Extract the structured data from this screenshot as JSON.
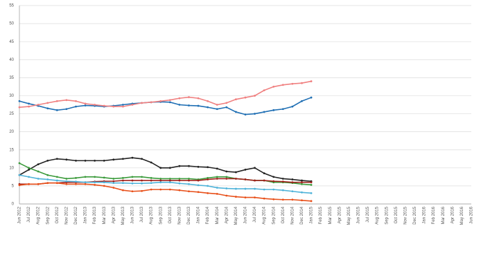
{
  "chart_data": {
    "type": "line",
    "categories": [
      "Jun 2012",
      "Jul 2012",
      "Aug 2012",
      "Sep 2012",
      "Oct 2012",
      "Nov 2012",
      "Dec 2012",
      "Jan 2013",
      "Feb 2013",
      "Mar 2013",
      "Apr 2013",
      "May 2013",
      "Jun 2013",
      "Jul 2013",
      "Aug 2013",
      "Sep 2013",
      "Oct 2013",
      "Nov 2013",
      "Dec 2013",
      "Jan 2014",
      "Feb 2014",
      "Mar 2014",
      "Apr 2014",
      "May 2014",
      "Jun 2014",
      "Jul 2014",
      "Aug 2014",
      "Sep 2014",
      "Oct 2014",
      "Nov 2014",
      "Dec 2014",
      "Jan 2015",
      "Feb 2015",
      "Mar 2015",
      "Apr 2015",
      "May 2015",
      "Jun 2015",
      "Jul 2015",
      "Aug 2015",
      "Sep 2015",
      "Oct 2015",
      "Nov 2015",
      "Dec 2015",
      "Jan 2016",
      "Feb 2016",
      "Mar 2016",
      "Apr 2016",
      "May 2016",
      "Jun 2016"
    ],
    "series": [
      {
        "color": "#1f6fb4",
        "values": [
          28.5,
          27.8,
          27.2,
          26.5,
          26,
          26.3,
          27,
          27.3,
          27.2,
          27,
          27.2,
          27.5,
          27.8,
          28,
          28.2,
          28.3,
          28.2,
          27.5,
          27.3,
          27.2,
          26.8,
          26.3,
          26.8,
          25.5,
          24.8,
          25,
          25.5,
          26,
          26.3,
          27,
          28.5,
          29.5,
          null,
          null,
          null,
          null,
          null,
          null,
          null,
          null,
          null,
          null,
          null,
          null,
          null,
          null,
          null,
          null,
          null
        ]
      },
      {
        "color": "#f08080",
        "values": [
          26.8,
          27,
          27.5,
          28,
          28.5,
          28.8,
          28.5,
          27.8,
          27.5,
          27.2,
          27,
          27,
          27.5,
          28,
          28.2,
          28.5,
          28.8,
          29.3,
          29.6,
          29.3,
          28.5,
          27.5,
          28,
          29,
          29.5,
          30,
          31.5,
          32.5,
          33,
          33.3,
          33.5,
          34,
          null,
          null,
          null,
          null,
          null,
          null,
          null,
          null,
          null,
          null,
          null,
          null,
          null,
          null,
          null,
          null,
          null
        ]
      },
      {
        "color": "#222222",
        "values": [
          8,
          9.5,
          11,
          12,
          12.5,
          12.3,
          12,
          12,
          12,
          12,
          12.3,
          12.5,
          12.8,
          12.5,
          11.5,
          10,
          10,
          10.5,
          10.5,
          10.3,
          10.2,
          9.8,
          9,
          8.8,
          9.5,
          10,
          8.5,
          7.5,
          7,
          6.8,
          6.5,
          6.3,
          null,
          null,
          null,
          null,
          null,
          null,
          null,
          null,
          null,
          null,
          null,
          null,
          null,
          null,
          null,
          null,
          null
        ]
      },
      {
        "color": "#3a9a3a",
        "values": [
          11.3,
          10,
          9,
          8,
          7.5,
          7,
          7.2,
          7.5,
          7.5,
          7.3,
          7,
          7.2,
          7.5,
          7.5,
          7.2,
          7,
          7,
          7,
          7,
          6.8,
          7.2,
          7.5,
          7.5,
          7,
          6.8,
          6.5,
          6.5,
          6,
          6,
          5.8,
          5.5,
          5.3,
          null,
          null,
          null,
          null,
          null,
          null,
          null,
          null,
          null,
          null,
          null,
          null,
          null,
          null,
          null,
          null,
          null
        ]
      },
      {
        "color": "#a0201a",
        "values": [
          5.5,
          5.5,
          5.5,
          5.8,
          5.8,
          6,
          6,
          6,
          6.2,
          6.3,
          6.3,
          6.5,
          6.5,
          6.5,
          6.5,
          6.5,
          6.5,
          6.5,
          6.5,
          6.5,
          6.8,
          7,
          7,
          7,
          6.8,
          6.5,
          6.5,
          6.3,
          6.2,
          6,
          6,
          6,
          null,
          null,
          null,
          null,
          null,
          null,
          null,
          null,
          null,
          null,
          null,
          null,
          null,
          null,
          null,
          null,
          null
        ]
      },
      {
        "color": "#4fb3d9",
        "values": [
          8,
          7.5,
          7,
          6.8,
          6.5,
          6.3,
          6.2,
          6,
          6,
          6,
          5.8,
          5.8,
          5.7,
          5.7,
          5.8,
          6,
          6,
          5.7,
          5.5,
          5.2,
          5,
          4.5,
          4.3,
          4.2,
          4.2,
          4.2,
          4,
          4,
          3.8,
          3.5,
          3.2,
          3,
          null,
          null,
          null,
          null,
          null,
          null,
          null,
          null,
          null,
          null,
          null,
          null,
          null,
          null,
          null,
          null,
          null
        ]
      },
      {
        "color": "#e8501a",
        "values": [
          5.2,
          5.5,
          5.5,
          5.8,
          5.8,
          5.5,
          5.5,
          5.5,
          5.3,
          5,
          4.5,
          3.8,
          3.5,
          3.6,
          4,
          4,
          4,
          3.8,
          3.5,
          3.3,
          3,
          2.8,
          2.3,
          2,
          1.8,
          1.8,
          1.5,
          1.3,
          1.2,
          1.2,
          1,
          0.8,
          null,
          null,
          null,
          null,
          null,
          null,
          null,
          null,
          null,
          null,
          null,
          null,
          null,
          null,
          null,
          null,
          null
        ]
      }
    ],
    "ylim": [
      0,
      55
    ],
    "yticks": [
      0,
      5,
      10,
      15,
      20,
      25,
      30,
      35,
      40,
      45,
      50,
      55
    ],
    "grid": true
  }
}
